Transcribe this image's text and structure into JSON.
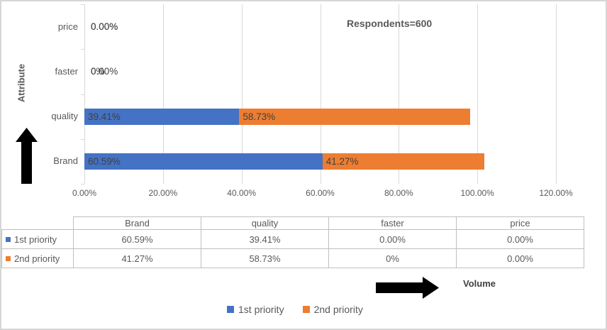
{
  "colors": {
    "series1": "#4472C4",
    "series2": "#ED7D31",
    "gridline": "#D9D9D9",
    "axis_text": "#595959",
    "data_label": "#404040",
    "table_border": "#BFBFBF",
    "arrow": "#000000"
  },
  "annotations": {
    "respondents_note": "Respondents=600",
    "volume_label": "Volume",
    "up_arrow": "up-arrow",
    "right_arrow": "right-arrow"
  },
  "chart_data": {
    "type": "bar",
    "orientation": "horizontal",
    "stacked": true,
    "title": "",
    "ylabel": "Attribute",
    "note": "Respondents=600",
    "xlabel_annotation": "Volume",
    "categories_top_to_bottom": [
      "price",
      "faster",
      "quality",
      "Brand"
    ],
    "xlim": [
      0,
      120
    ],
    "x_ticks": [
      "0.00%",
      "20.00%",
      "40.00%",
      "60.00%",
      "80.00%",
      "100.00%",
      "120.00%"
    ],
    "x_tick_values": [
      0,
      20,
      40,
      60,
      80,
      100,
      120
    ],
    "grid": true,
    "legend_position": "bottom",
    "series": [
      {
        "name": "1st priority",
        "color": "#4472C4",
        "values": [
          0.0,
          0.0,
          39.41,
          60.59
        ],
        "labels": [
          "0.00%",
          "0.00%",
          "39.41%",
          "60.59%"
        ]
      },
      {
        "name": "2nd priority",
        "color": "#ED7D31",
        "values": [
          0.0,
          0.0,
          58.73,
          41.27
        ],
        "labels": [
          "0.00%",
          "0%",
          "58.73%",
          "41.27%"
        ]
      }
    ]
  },
  "table": {
    "corner_label": "",
    "columns": [
      "Brand",
      "quality",
      "faster",
      "price"
    ],
    "rows": [
      {
        "name": "1st priority",
        "marker_color": "#4472C4",
        "values": [
          "60.59%",
          "39.41%",
          "0.00%",
          "0.00%"
        ]
      },
      {
        "name": "2nd priority",
        "marker_color": "#ED7D31",
        "values": [
          "41.27%",
          "58.73%",
          "0%",
          "0.00%"
        ]
      }
    ]
  },
  "legend": {
    "items": [
      {
        "label": "1st priority",
        "color": "#4472C4"
      },
      {
        "label": "2nd priority",
        "color": "#ED7D31"
      }
    ]
  }
}
